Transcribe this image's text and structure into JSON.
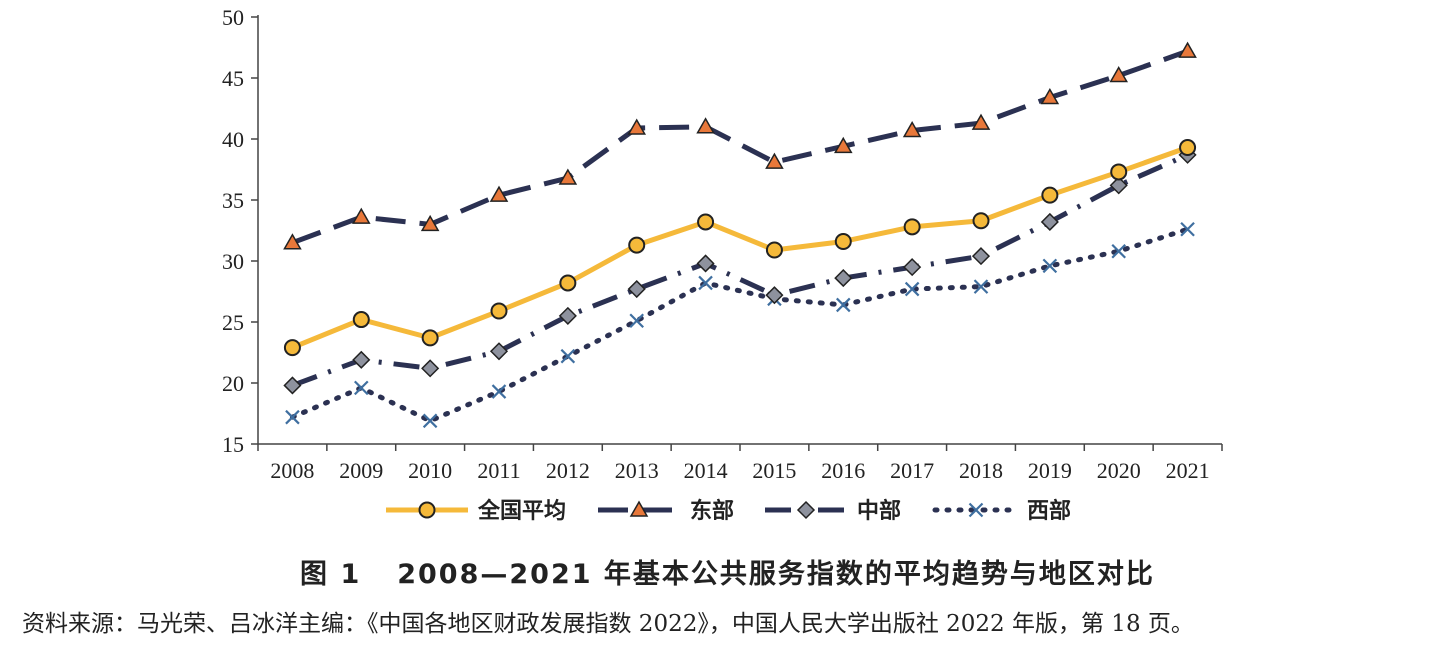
{
  "chart_data": {
    "type": "line",
    "categories": [
      "2008",
      "2009",
      "2010",
      "2011",
      "2012",
      "2013",
      "2014",
      "2015",
      "2016",
      "2017",
      "2018",
      "2019",
      "2020",
      "2021"
    ],
    "ylim": [
      15,
      50
    ],
    "yticks": [
      15,
      20,
      25,
      30,
      35,
      40,
      45,
      50
    ],
    "grid": false,
    "legend_position": "bottom",
    "series": [
      {
        "name": "全国平均",
        "color": "#F5B93A",
        "marker": "circle",
        "line_style": "solid",
        "values": [
          22.9,
          25.2,
          23.7,
          25.9,
          28.2,
          31.3,
          33.2,
          30.9,
          31.6,
          32.8,
          33.3,
          35.4,
          37.3,
          39.3
        ]
      },
      {
        "name": "东部",
        "color": "#2B3152",
        "marker": "triangle",
        "marker_color": "#E8783A",
        "line_style": "long-dash",
        "values": [
          31.5,
          33.6,
          33.0,
          35.4,
          36.8,
          40.9,
          41.0,
          38.1,
          39.4,
          40.7,
          41.3,
          43.4,
          45.2,
          47.2
        ]
      },
      {
        "name": "中部",
        "color": "#2B3152",
        "marker": "diamond",
        "marker_color": "#8E929E",
        "line_style": "dash-dot",
        "values": [
          19.8,
          21.9,
          21.2,
          22.6,
          25.5,
          27.7,
          29.8,
          27.2,
          28.6,
          29.5,
          30.4,
          33.2,
          36.2,
          38.7
        ]
      },
      {
        "name": "西部",
        "color": "#2B3152",
        "marker": "x",
        "marker_color": "#3F6FA0",
        "line_style": "dotted",
        "values": [
          17.2,
          19.6,
          16.9,
          19.3,
          22.2,
          25.1,
          28.2,
          26.9,
          26.4,
          27.7,
          27.9,
          29.6,
          30.8,
          32.6
        ]
      }
    ]
  },
  "caption": {
    "figure_number": "图 1",
    "title": "2008—2021 年基本公共服务指数的平均趋势与地区对比"
  },
  "source_note": "资料来源：马光荣、吕冰洋主编：《中国各地区财政发展指数 2022》，中国人民大学出版社 2022 年版，第 18 页。"
}
